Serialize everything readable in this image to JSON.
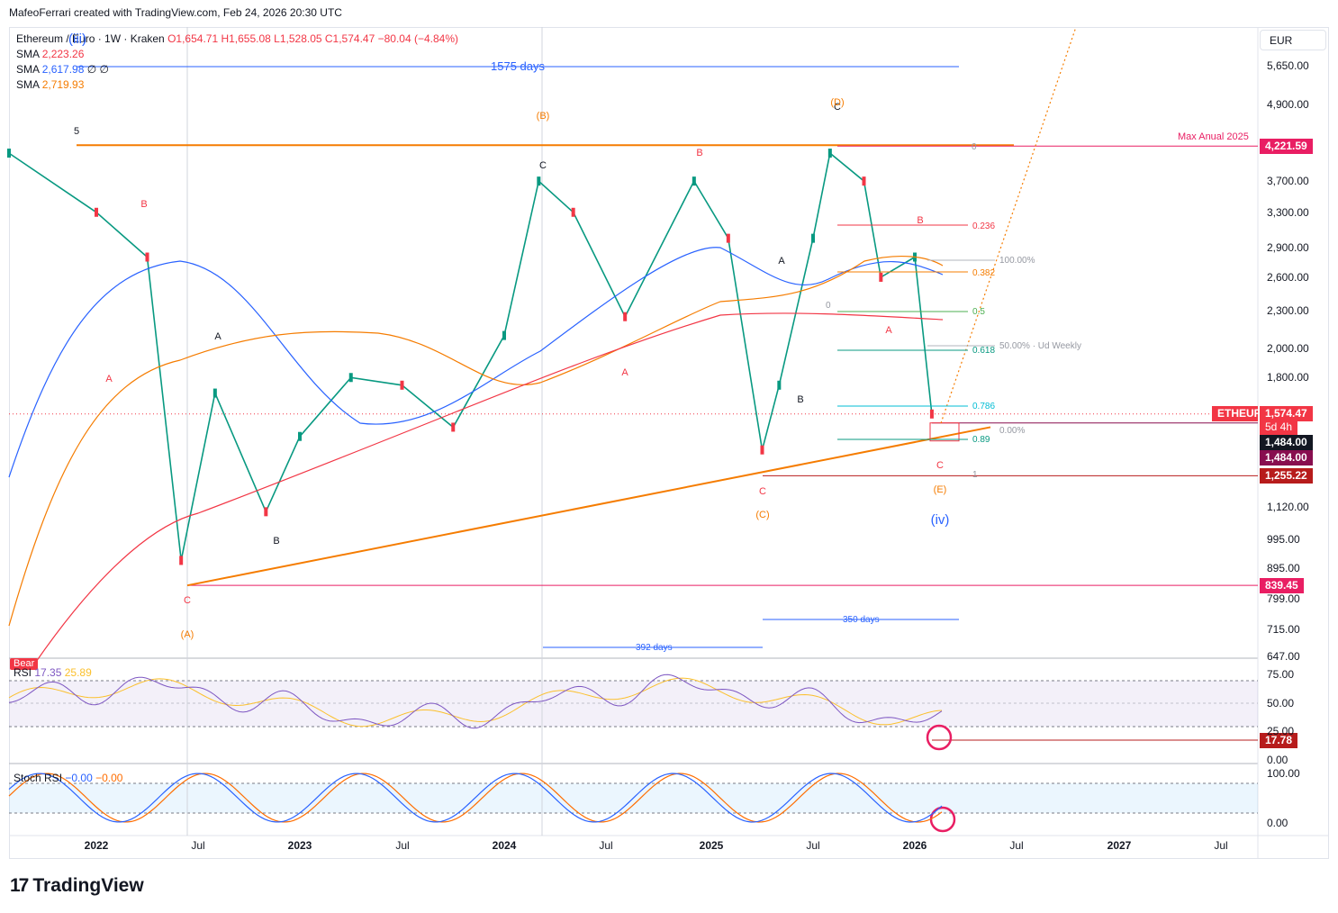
{
  "header": {
    "credit": "MafeoFerrari created with TradingView.com, Feb 24, 2026 20:30 UTC"
  },
  "legend": {
    "symbol": "Ethereum / Euro · 1W · Kraken",
    "ohlc": "O1,654.71  H1,655.08  L1,528.05  C1,574.47  −80.04 (−4.84%)",
    "sma_label": "SMA",
    "sma1_value": "2,223.26",
    "sma2_value": "2,617.98",
    "sma2_extra": "∅  ∅",
    "sma3_value": "2,719.93",
    "sma1_color": "#f23645",
    "sma2_color": "#2962ff",
    "sma3_color": "#f57c00"
  },
  "currency": "EUR",
  "price_axis": [
    "5,650.00",
    "4,900.00",
    "3,700.00",
    "3,300.00",
    "2,900.00",
    "2,600.00",
    "2,300.00",
    "2,000.00",
    "1,800.00",
    "1,120.00",
    "995.00",
    "895.00",
    "799.00",
    "715.00",
    "647.00"
  ],
  "time_axis": {
    "labels": [
      "2022",
      "Jul",
      "2023",
      "Jul",
      "2024",
      "Jul",
      "2025",
      "Jul",
      "2026",
      "Jul",
      "2027",
      "Jul"
    ],
    "years": [
      "2022",
      "2023",
      "2024",
      "2025",
      "2026",
      "2027"
    ]
  },
  "badges": {
    "max_price": "4,221.59",
    "max_color": "#e91e63",
    "ticker": "ETHEUR",
    "ticker_color": "#f23645",
    "last_price": "1,574.47",
    "countdown": "5d 4h",
    "level_a": "1,484.00",
    "level_b": "1,484.00",
    "level_c": "1,255.22",
    "level_a_color": "#131722",
    "level_b_color": "#880e4f",
    "level_c_color": "#b71c1c",
    "low_price": "839.45",
    "low_color": "#e91e63",
    "rsi_value": "17.78",
    "rsi_color": "#b71c1c"
  },
  "annotations": {
    "days_1575": "1575 days",
    "days_350": "350 days",
    "days_392": "392 days",
    "max_anual": "Max Anual 2025",
    "ud_weekly": "50.00% · Ud Weekly",
    "hundred_pct": "100.00%",
    "zero_pct": "0.00%",
    "fib_0_top": "0",
    "fib_0_mid": "0",
    "fib_1": "1"
  },
  "fib_levels": [
    "0.236",
    "0.382",
    "0.5",
    "0.618",
    "0.786",
    "0.89"
  ],
  "waves": {
    "w5": "5",
    "wiii": "(iii)",
    "wB1": "B",
    "wA1": "A",
    "wA2": "A",
    "wB2": "B",
    "wC1": "C",
    "wA_paren": "(A)",
    "wC2": "C",
    "wB_paren": "(B)",
    "wA3": "A",
    "wB3": "B",
    "wC3": "C",
    "wC_paren": "(C)",
    "wA4": "A",
    "wB4": "B",
    "wC4": "C",
    "wD_paren": "(D)",
    "wB5": "B",
    "wA5": "A",
    "wC5": "C",
    "wE_paren": "(E)",
    "wiv": "(iv)"
  },
  "indicators": {
    "bear": "Bear",
    "rsi_name": "RSI",
    "rsi_val": "17.35",
    "rsi_ma": "25.89",
    "rsi_axis": [
      "75.00",
      "50.00",
      "25.00",
      "0.00"
    ],
    "stoch_name": "Stoch RSI",
    "stoch_k": "−0.00",
    "stoch_d": "−0.00",
    "stoch_axis": [
      "100.00",
      "0.00"
    ]
  },
  "footer": {
    "brand": "TradingView",
    "mark": "17"
  },
  "chart_data": {
    "type": "line",
    "title": "Ethereum / Euro · 1W · Kraken",
    "scale": "log",
    "ylim": [
      647,
      5650
    ],
    "x": [
      "2021-11",
      "2022-01",
      "2022-04",
      "2022-06",
      "2022-08",
      "2022-11",
      "2023-01",
      "2023-04",
      "2023-07",
      "2023-10",
      "2024-01",
      "2024-03",
      "2024-05",
      "2024-08",
      "2024-12",
      "2025-02",
      "2025-04",
      "2025-05",
      "2025-07",
      "2025-08",
      "2025-10",
      "2025-11",
      "2026-01",
      "2026-02"
    ],
    "series": [
      {
        "name": "ETHEUR",
        "values": [
          4100,
          3300,
          2800,
          920,
          1700,
          1100,
          1450,
          1800,
          1750,
          1500,
          2100,
          3700,
          3300,
          2250,
          3700,
          3000,
          1380,
          1750,
          3000,
          4100,
          3700,
          2600,
          2800,
          1574.47
        ]
      }
    ],
    "levels": {
      "max_anual_2025": 4221.59,
      "low": 839.45,
      "support": 1484.0,
      "target": 1255.22,
      "last": 1574.47
    },
    "rsi": {
      "last": 17.35,
      "ma": 25.89,
      "marked": 17.78
    },
    "stoch_rsi": {
      "k": 0.0,
      "d": 0.0
    }
  }
}
